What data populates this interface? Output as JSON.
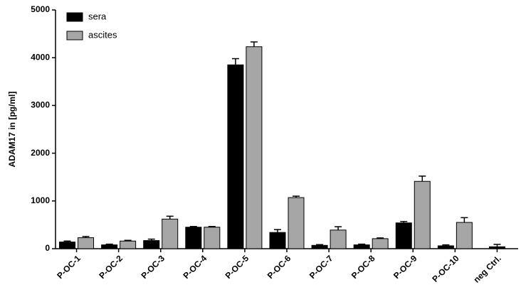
{
  "chart_data": {
    "type": "bar",
    "y_label": "ADAM17 in [pg/ml]",
    "categories": [
      "P-OC-1",
      "P-OC-2",
      "P-OC-3",
      "P-OC-4",
      "P-OC-5",
      "P-OC-6",
      "P-OC-7",
      "P-OC-8",
      "P-OC-9",
      "P-OC-10",
      "neg Ctrl."
    ],
    "series": [
      {
        "name": "sera",
        "color": "#000000",
        "values": [
          140,
          80,
          170,
          450,
          3850,
          340,
          70,
          80,
          540,
          60,
          40
        ],
        "errors": [
          20,
          15,
          30,
          15,
          130,
          60,
          15,
          15,
          30,
          20,
          50
        ]
      },
      {
        "name": "ascites",
        "color": "#a6a6a6",
        "values": [
          230,
          160,
          620,
          450,
          4230,
          1070,
          390,
          210,
          1410,
          550,
          null
        ],
        "errors": [
          25,
          15,
          60,
          15,
          100,
          30,
          70,
          15,
          110,
          100,
          null
        ]
      }
    ],
    "ylim": [
      0,
      5000
    ],
    "yticks": [
      0,
      1000,
      2000,
      3000,
      4000,
      5000
    ],
    "grid": false,
    "legend": "top-left"
  }
}
